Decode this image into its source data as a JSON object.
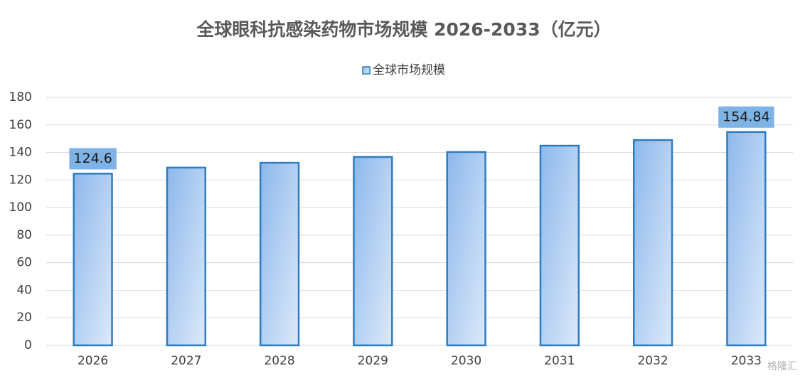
{
  "chart_data": {
    "type": "bar",
    "title": "全球眼科抗感染药物市场规模 2026-2033（亿元）",
    "categories": [
      "2026",
      "2027",
      "2028",
      "2029",
      "2030",
      "2031",
      "2032",
      "2033"
    ],
    "series": [
      {
        "name": "全球市场规模",
        "color": "#2e7cc0",
        "values": [
          124.6,
          129,
          132.5,
          136.7,
          140.3,
          144.9,
          149,
          154.84
        ]
      }
    ],
    "value_labels": [
      "124.6",
      null,
      null,
      null,
      null,
      null,
      null,
      "154.84"
    ],
    "ylim": [
      0,
      180
    ],
    "yticks": [
      0,
      20,
      40,
      60,
      80,
      100,
      120,
      140,
      160,
      180
    ],
    "grid": true,
    "legend": "top",
    "watermark": "格隆汇"
  }
}
